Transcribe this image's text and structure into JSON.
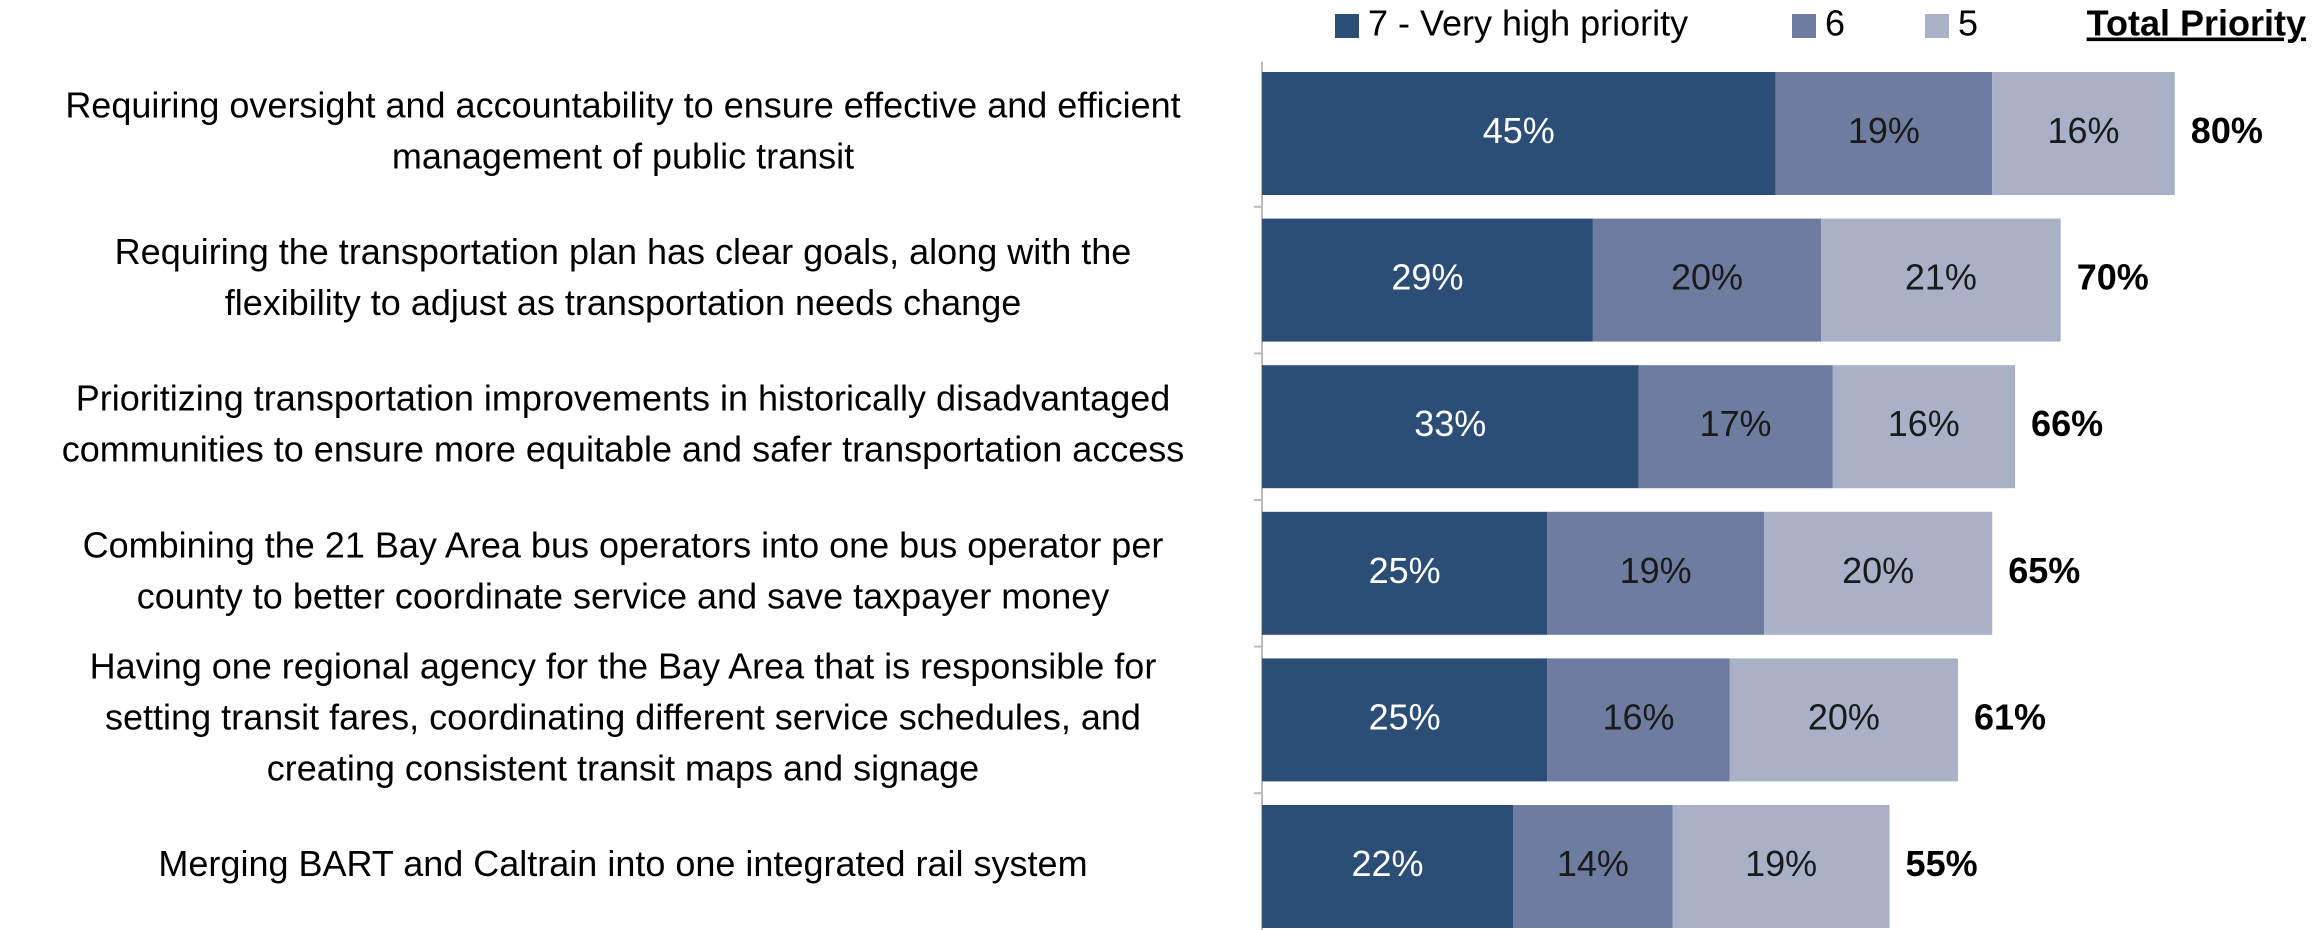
{
  "chart_data": {
    "type": "stacked_bar_horizontal",
    "categories": [
      [
        "Requiring oversight and accountability to ensure effective and efficient",
        "management of public transit"
      ],
      [
        "Requiring the transportation plan has clear goals, along with the",
        "flexibility to adjust as transportation needs change"
      ],
      [
        "Prioritizing transportation improvements in historically disadvantaged",
        "communities to ensure more equitable and safer transportation access"
      ],
      [
        "Combining the 21 Bay Area bus operators into one bus operator per",
        "county to better coordinate service and save taxpayer money"
      ],
      [
        "Having one regional agency for the Bay Area that is responsible for",
        "setting transit fares, coordinating different service schedules, and",
        "creating consistent transit maps and signage"
      ],
      [
        "Merging BART and Caltrain into one integrated rail system"
      ]
    ],
    "series": [
      {
        "name": "7 - Very high priority",
        "color": "#2b4d76",
        "values": [
          45,
          29,
          33,
          25,
          25,
          22
        ],
        "value_labels": [
          "45%",
          "29%",
          "33%",
          "25%",
          "25%",
          "22%"
        ]
      },
      {
        "name": "6",
        "color": "#6e7d9f",
        "values": [
          19,
          20,
          17,
          19,
          16,
          14
        ],
        "value_labels": [
          "19%",
          "20%",
          "17%",
          "19%",
          "16%",
          "14%"
        ]
      },
      {
        "name": "5",
        "color": "#a8b1c8",
        "values": [
          16,
          21,
          16,
          20,
          20,
          19
        ],
        "value_labels": [
          "16%",
          "21%",
          "16%",
          "20%",
          "20%",
          "19%"
        ]
      }
    ],
    "totals": {
      "title": "Total Priority",
      "values": [
        80,
        70,
        66,
        65,
        61,
        55
      ],
      "value_labels": [
        "80%",
        "70%",
        "66%",
        "65%",
        "61%",
        "55%"
      ]
    }
  }
}
